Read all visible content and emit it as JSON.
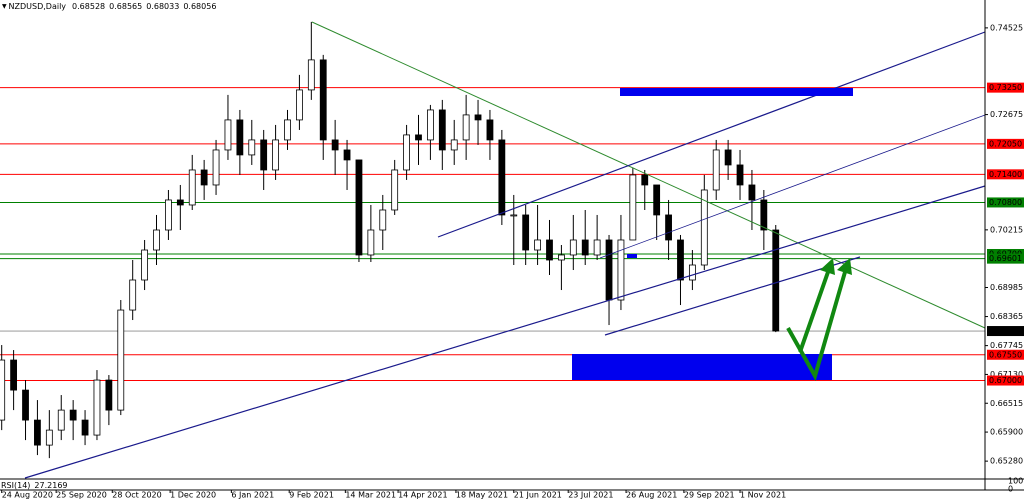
{
  "chart_data": {
    "type": "candlestick",
    "header": {
      "symbol": "NZDUSD,Daily",
      "open": 0.68528,
      "high": 0.68565,
      "low": 0.68033,
      "close": 0.68056
    },
    "xlim": [
      "23 Aug 2020",
      "25 Mar 2022"
    ],
    "xticks": [
      "24 Aug 2020",
      "25 Sep 2020",
      "28 Oct 2020",
      "1 Dec 2020",
      "6 Jan 2021",
      "9 Feb 2021",
      "14 Mar 2021",
      "14 Apr 2021",
      "18 May 2021",
      "21 Jun 2021",
      "23 Jul 2021",
      "26 Aug 2021",
      "29 Sep 2021",
      "1 Nov 2021"
    ],
    "ylim": [
      0.6492,
      0.7512
    ],
    "yticks": [
      0.74525,
      0.72675,
      0.70215,
      0.68985,
      0.68365,
      0.67745,
      {
        "value": 0.6713,
        "label": "0.67130"
      },
      0.66515,
      {
        "value": 0.659,
        "label": "0.65900"
      },
      {
        "value": 0.6528,
        "label": "0.65280"
      }
    ],
    "levels": [
      {
        "value": 0.7325,
        "label": "0.73250",
        "color": "#ff0000"
      },
      {
        "value": 0.7205,
        "label": "0.72050",
        "color": "#ff0000"
      },
      {
        "value": 0.714,
        "label": "0.71400",
        "color": "#ff0000"
      },
      {
        "value": 0.708,
        "label": "0.70800",
        "color": "#008000"
      },
      {
        "value": 0.697,
        "label": "0.69700",
        "color": "#008000"
      },
      {
        "value": 0.69601,
        "label": "0.69601",
        "color": "#008000"
      },
      {
        "value": 0.68056,
        "label": "0.68056",
        "color": "#000000"
      },
      {
        "value": 0.6755,
        "label": "0.67550",
        "color": "#ff0000"
      },
      {
        "value": 0.67,
        "label": "0.67000",
        "color": "#ff0000"
      }
    ],
    "candles": {
      "x": [
        "24 Aug 2020",
        "31 Aug 2020",
        "7 Sep 2020",
        "14 Sep 2020",
        "21 Sep 2020",
        "28 Sep 2020",
        "5 Oct 2020",
        "12 Oct 2020",
        "19 Oct 2020",
        "26 Oct 2020",
        "2 Nov 2020",
        "9 Nov 2020",
        "16 Nov 2020",
        "23 Nov 2020",
        "30 Nov 2020",
        "7 Dec 2020",
        "14 Dec 2020",
        "21 Dec 2020",
        "28 Dec 2020",
        "4 Jan 2021",
        "11 Jan 2021",
        "18 Jan 2021",
        "25 Jan 2021",
        "1 Feb 2021",
        "8 Feb 2021",
        "15 Feb 2021",
        "22 Feb 2021",
        "1 Mar 2021",
        "8 Mar 2021",
        "15 Mar 2021",
        "22 Mar 2021",
        "29 Mar 2021",
        "5 Apr 2021",
        "12 Apr 2021",
        "19 Apr 2021",
        "26 Apr 2021",
        "3 May 2021",
        "10 May 2021",
        "17 May 2021",
        "24 May 2021",
        "31 May 2021",
        "7 Jun 2021",
        "14 Jun 2021",
        "21 Jun 2021",
        "28 Jun 2021",
        "5 Jul 2021",
        "12 Jul 2021",
        "19 Jul 2021",
        "26 Jul 2021",
        "2 Aug 2021",
        "9 Aug 2021",
        "16 Aug 2021",
        "23 Aug 2021",
        "30 Aug 2021",
        "6 Sep 2021",
        "13 Sep 2021",
        "20 Sep 2021",
        "27 Sep 2021",
        "4 Oct 2021",
        "11 Oct 2021",
        "18 Oct 2021",
        "25 Oct 2021",
        "1 Nov 2021",
        "8 Nov 2021",
        "15 Nov 2021",
        "22 Nov 2021"
      ],
      "open": [
        0.66156,
        0.67437,
        0.66796,
        0.66156,
        0.65622,
        0.65942,
        0.66369,
        0.66156,
        0.65836,
        0.6701,
        0.66369,
        0.68504,
        0.69145,
        0.69785,
        0.70212,
        0.70853,
        0.70746,
        0.71493,
        0.71173,
        0.7192,
        0.72561,
        0.71814,
        0.72134,
        0.71493,
        0.72134,
        0.72561,
        0.73201,
        0.73842,
        0.72134,
        0.7192,
        0.71707,
        0.69679,
        0.70212,
        0.70639,
        0.71493,
        0.72241,
        0.72134,
        0.72774,
        0.7192,
        0.72134,
        0.72668,
        0.72561,
        0.72134,
        0.70533,
        0.70533,
        0.69785,
        0.69999,
        0.69572,
        0.69679,
        0.69999,
        0.69679,
        0.69999,
        0.68718,
        0.69999,
        0.71387,
        0.71173,
        0.70533,
        0.69999,
        0.69145,
        0.69465,
        0.71066,
        0.7192,
        0.716,
        0.71173,
        0.70853,
        0.70212
      ],
      "high": [
        0.67757,
        0.6765,
        0.6701,
        0.66583,
        0.66369,
        0.6669,
        0.66583,
        0.66369,
        0.67223,
        0.67117,
        0.68718,
        0.69572,
        0.69999,
        0.70533,
        0.71066,
        0.71173,
        0.71814,
        0.71707,
        0.72134,
        0.73095,
        0.72774,
        0.72561,
        0.72347,
        0.72454,
        0.72774,
        0.73522,
        0.74653,
        0.73949,
        0.72561,
        0.72134,
        0.71707,
        0.70746,
        0.7096,
        0.71707,
        0.72454,
        0.72668,
        0.72881,
        0.72988,
        0.72561,
        0.73095,
        0.72988,
        0.72774,
        0.72347,
        0.7096,
        0.70746,
        0.70746,
        0.70426,
        0.69892,
        0.70533,
        0.70639,
        0.70533,
        0.70106,
        0.70533,
        0.71536,
        0.71493,
        0.71173,
        0.70853,
        0.70106,
        0.69785,
        0.71387,
        0.72134,
        0.72134,
        0.7192,
        0.71493,
        0.71066,
        0.70319
      ],
      "low": [
        0.65942,
        0.66369,
        0.65729,
        0.65409,
        0.65344,
        0.65729,
        0.65729,
        0.65622,
        0.65729,
        0.66049,
        0.66263,
        0.68291,
        0.68931,
        0.69465,
        0.69999,
        0.70212,
        0.70639,
        0.70853,
        0.7096,
        0.71707,
        0.71387,
        0.716,
        0.71066,
        0.7128,
        0.7192,
        0.72347,
        0.72988,
        0.71707,
        0.71387,
        0.71066,
        0.69529,
        0.69529,
        0.69785,
        0.70533,
        0.7128,
        0.716,
        0.71707,
        0.71493,
        0.716,
        0.71707,
        0.72027,
        0.71707,
        0.70319,
        0.69465,
        0.69465,
        0.69465,
        0.69252,
        0.68931,
        0.69358,
        0.69465,
        0.69572,
        0.68184,
        0.68504,
        0.69999,
        0.70639,
        0.69999,
        0.69572,
        0.68611,
        0.68931,
        0.69358,
        0.70853,
        0.7128,
        0.70853,
        0.70212,
        0.69785,
        0.68033
      ],
      "close": [
        0.67437,
        0.66796,
        0.66156,
        0.65622,
        0.65942,
        0.66369,
        0.66156,
        0.65836,
        0.6701,
        0.66369,
        0.68504,
        0.69145,
        0.69785,
        0.70212,
        0.70853,
        0.70746,
        0.71493,
        0.71173,
        0.7192,
        0.72561,
        0.71814,
        0.72134,
        0.71493,
        0.72134,
        0.72561,
        0.73201,
        0.73842,
        0.72134,
        0.7192,
        0.71707,
        0.69679,
        0.70212,
        0.70639,
        0.71493,
        0.72241,
        0.72134,
        0.72774,
        0.7192,
        0.72134,
        0.72668,
        0.72561,
        0.72134,
        0.70533,
        0.70533,
        0.69785,
        0.69999,
        0.69572,
        0.69679,
        0.69999,
        0.69679,
        0.69999,
        0.68718,
        0.69999,
        0.71387,
        0.71173,
        0.70533,
        0.69999,
        0.69145,
        0.69465,
        0.71066,
        0.7192,
        0.716,
        0.71173,
        0.70853,
        0.70212,
        0.68056
      ]
    },
    "indicator": {
      "name": "RSI(14)",
      "value": 27.2169,
      "ylim": [
        0,
        100
      ],
      "yticks": [
        100,
        0
      ]
    }
  }
}
